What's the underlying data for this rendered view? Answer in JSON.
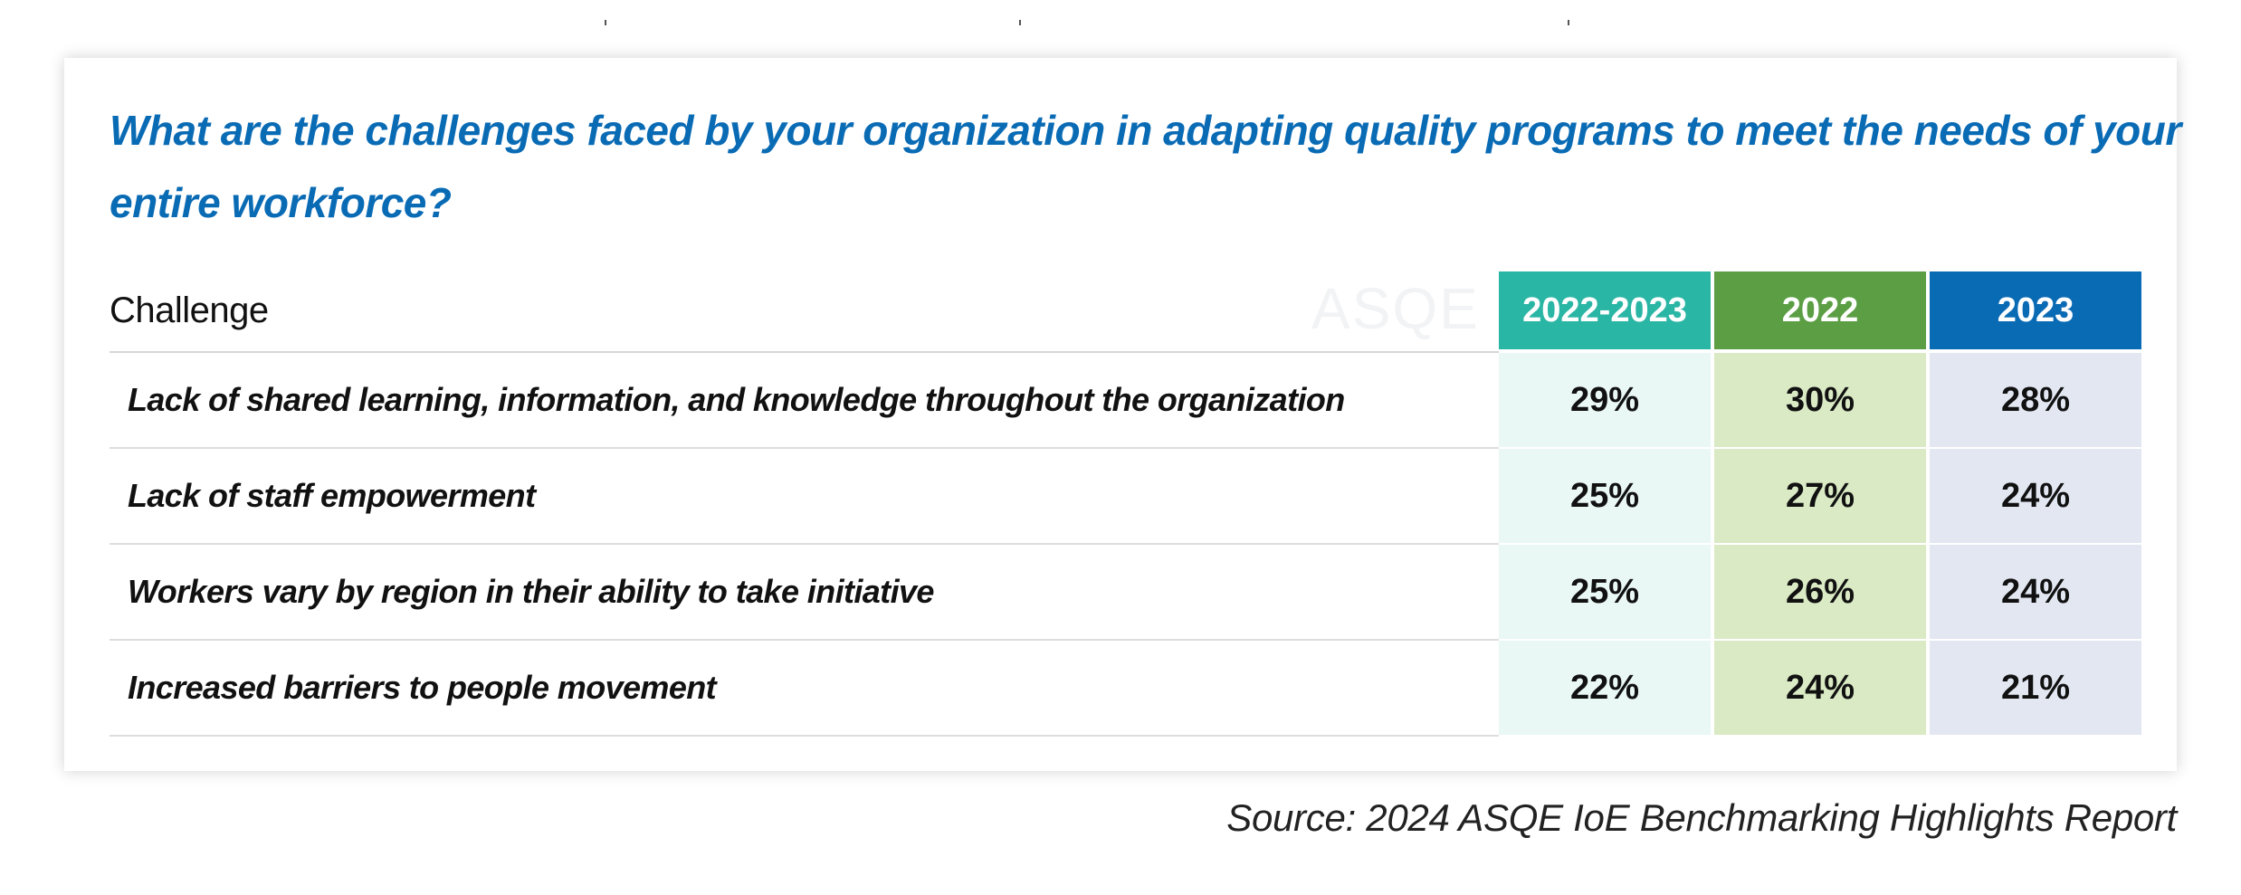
{
  "question": "What are the challenges faced by your organization in adapting quality programs to meet the needs of your entire workforce?",
  "watermark": "ASQE",
  "source": "Source: 2024 ASQE IoE Benchmarking Highlights Report",
  "colors": {
    "title": "#0A6BB5",
    "header_2022_2023": "#2AB6A5",
    "header_2022": "#5B9E44",
    "header_2023": "#0A6BB5",
    "cell_2022_2023": "#E9F7F5",
    "cell_2022": "#D9EAC4",
    "cell_2023": "#E2E7F2"
  },
  "chart_data": {
    "type": "table",
    "row_header": "Challenge",
    "columns": [
      "2022-2023",
      "2022",
      "2023"
    ],
    "rows": [
      {
        "label": "Lack of shared learning, information, and knowledge throughout the organization",
        "values": [
          "29%",
          "30%",
          "28%"
        ]
      },
      {
        "label": "Lack of staff empowerment",
        "values": [
          "25%",
          "27%",
          "24%"
        ]
      },
      {
        "label": "Workers vary by region in their ability to take initiative",
        "values": [
          "25%",
          "26%",
          "24%"
        ]
      },
      {
        "label": "Increased barriers to people movement",
        "values": [
          "22%",
          "24%",
          "21%"
        ]
      }
    ]
  }
}
